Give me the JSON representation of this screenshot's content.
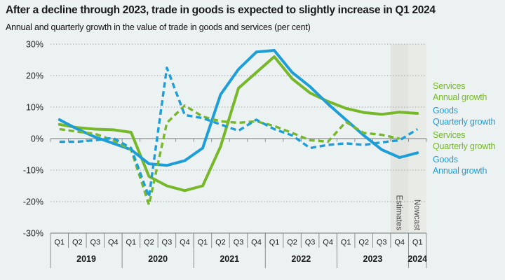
{
  "title": "After a decline through 2023, trade in goods is expected to slightly increase in Q1 2024",
  "subtitle": "Annual and quarterly growth in the value of trade in goods and services (per cent)",
  "colors": {
    "goods": "#1d9ed9",
    "services": "#76b82a",
    "grid": "#a0a4a4",
    "axis": "#8a8f8f",
    "tick_text": "#222222",
    "band_text": "#4a4a4a",
    "background": "#ecf1f2",
    "band_estimates": "#e2e4e0",
    "band_nowcast": "#e9ebe7"
  },
  "legend": [
    {
      "line1": "Services",
      "line2": "Annual growth",
      "series": "services"
    },
    {
      "line1": "Goods",
      "line2": "Quarterly growth",
      "series": "goods"
    },
    {
      "line1": "Services",
      "line2": "Quarterly growth",
      "series": "services"
    },
    {
      "line1": "Goods",
      "line2": "Annual growth",
      "series": "goods"
    }
  ],
  "chart_data": {
    "type": "line",
    "years": [
      {
        "label": "2019",
        "quarters": [
          "Q1",
          "Q2",
          "Q3",
          "Q4"
        ]
      },
      {
        "label": "2020",
        "quarters": [
          "Q1",
          "Q2",
          "Q3",
          "Q4"
        ]
      },
      {
        "label": "2021",
        "quarters": [
          "Q1",
          "Q2",
          "Q3",
          "Q4"
        ]
      },
      {
        "label": "2022",
        "quarters": [
          "Q1",
          "Q2",
          "Q3",
          "Q4"
        ]
      },
      {
        "label": "2023",
        "quarters": [
          "Q1",
          "Q2",
          "Q3",
          "Q4"
        ]
      },
      {
        "label": "2024",
        "quarters": [
          "Q1"
        ]
      }
    ],
    "y_axis": {
      "min": -30,
      "max": 30,
      "step": 10,
      "unit": "%"
    },
    "grid": "dotted",
    "series": [
      {
        "name": "Services Annual growth",
        "color_key": "services",
        "style": "solid",
        "values": [
          4.5,
          3.5,
          3,
          2.8,
          2,
          -12,
          -15,
          -16.5,
          -15,
          -2.5,
          16,
          21,
          26,
          19,
          14.5,
          11.8,
          9.6,
          8.3,
          7.7,
          8.4,
          8
        ]
      },
      {
        "name": "Goods Annual growth",
        "color_key": "goods",
        "style": "solid",
        "values": [
          6,
          3,
          0.5,
          -1.5,
          -3.5,
          -8,
          -8.5,
          -7,
          -3,
          14,
          22,
          27.5,
          28,
          21,
          16.5,
          11,
          6,
          1,
          -3.5,
          -6,
          -4.5
        ]
      },
      {
        "name": "Services Quarterly growth",
        "color_key": "services",
        "style": "dashed",
        "values": [
          3,
          2.2,
          1.5,
          -0.5,
          -3.5,
          -21,
          5,
          10.5,
          7,
          5.5,
          5,
          5.5,
          4,
          1.8,
          -0.5,
          -1,
          5.3,
          1.8,
          1.2,
          0,
          null
        ]
      },
      {
        "name": "Goods Quarterly growth",
        "color_key": "goods",
        "style": "dashed",
        "values": [
          -1,
          -1,
          -0.5,
          0.2,
          -3,
          -18.5,
          22.5,
          7.5,
          6.5,
          4.5,
          2.5,
          6,
          3,
          1,
          -3,
          -2,
          -1.5,
          -2,
          -1.2,
          -0.5,
          3
        ]
      }
    ],
    "bands": [
      {
        "label": "Estimates",
        "start_index": 19,
        "end_index": 20,
        "color_key": "band_estimates"
      },
      {
        "label": "Nowcast",
        "start_index": 20,
        "end_index": 21,
        "color_key": "band_nowcast"
      }
    ]
  }
}
